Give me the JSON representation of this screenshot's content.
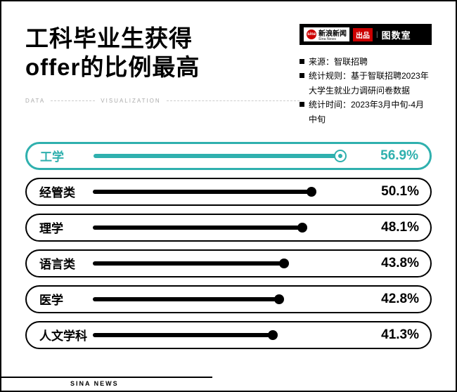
{
  "title_line1": "工科毕业生获得",
  "title_line2": "offer的比例最高",
  "subhead_left": "DATA",
  "subhead_right": "VISUALIZATION",
  "brand": {
    "sina_cn": "新浪新闻",
    "sina_en": "Sina News",
    "sina_eye": "sina",
    "chupin": "出品",
    "sep": "|",
    "tujiaoshi": "图数室"
  },
  "meta": [
    "来源：智联招聘",
    "统计规则：基于智联招聘2023年大学生就业力调研问卷数据",
    "统计时间：2023年3月中旬-4月中旬"
  ],
  "chart": {
    "type": "bar",
    "highlight_color": "#2fb0ae",
    "bar_color": "#000000",
    "background": "#ffffff",
    "value_suffix": "%",
    "max_value": 60,
    "rows": [
      {
        "label": "工学",
        "value": 56.9,
        "highlight": true
      },
      {
        "label": "经管类",
        "value": 50.1,
        "highlight": false
      },
      {
        "label": "理学",
        "value": 48.1,
        "highlight": false
      },
      {
        "label": "语言类",
        "value": 43.8,
        "highlight": false
      },
      {
        "label": "医学",
        "value": 42.8,
        "highlight": false
      },
      {
        "label": "人文学科",
        "value": 41.3,
        "highlight": false
      }
    ]
  },
  "footer": "SINA NEWS"
}
